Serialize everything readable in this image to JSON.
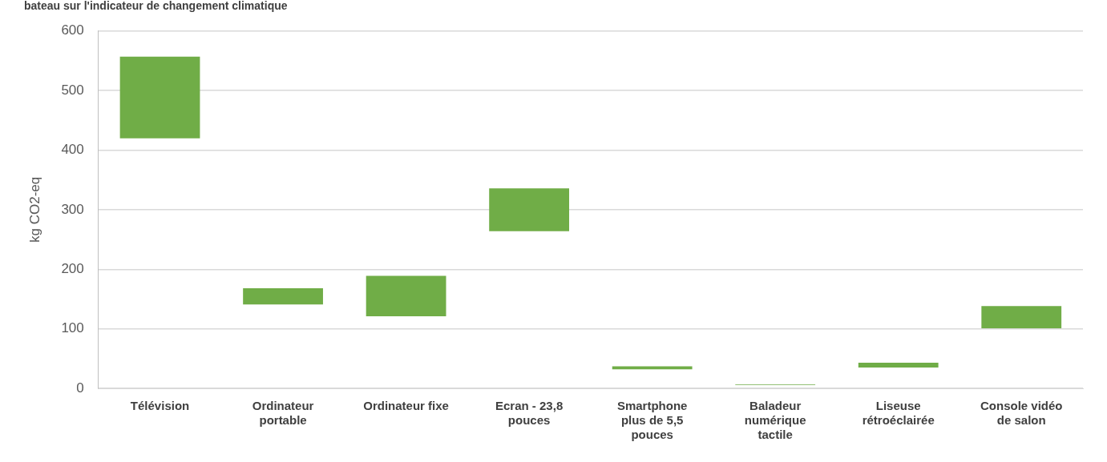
{
  "chart_data": {
    "type": "bar",
    "title": "bateau sur l'indicateur de changement climatique",
    "ylabel": "kg CO2-eq",
    "categories": [
      "Télévision",
      "Ordinateur portable",
      "Ordinateur fixe",
      "Ecran - 23,8 pouces",
      "Smartphone plus de 5,5 pouces",
      "Baladeur numérique tactile",
      "Liseuse rétroéclairée",
      "Console vidéo de salon"
    ],
    "base": [
      420,
      141,
      121,
      264,
      32,
      5.5,
      35,
      101
    ],
    "values": [
      137,
      27,
      68,
      72,
      5,
      1,
      8,
      37
    ],
    "color": "#70ad47",
    "ylim": [
      0,
      600
    ],
    "yticks": [
      0,
      100,
      200,
      300,
      400,
      500,
      600
    ],
    "grid": "y",
    "legend": false
  }
}
